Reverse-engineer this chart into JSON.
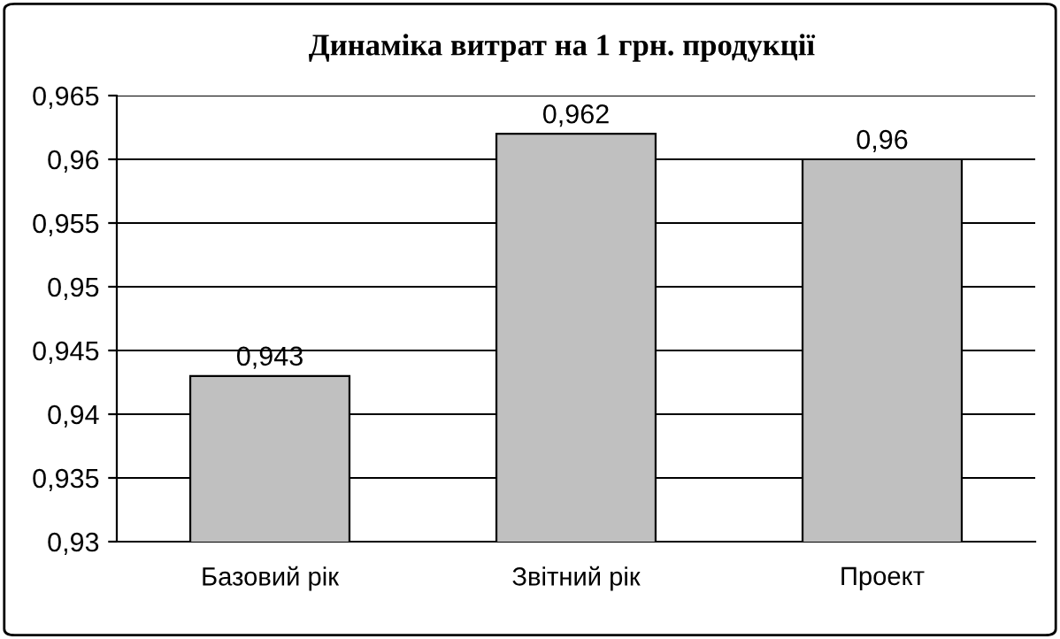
{
  "chart_data": {
    "type": "bar",
    "title": "Динаміка витрат на 1 грн. продукції",
    "categories": [
      "Базовий рік",
      "Звітний рік",
      "Проект"
    ],
    "values": [
      0.943,
      0.962,
      0.96
    ],
    "color": "#c0c0c0",
    "value_labels": [
      "0,943",
      "0,962",
      "0,96"
    ],
    "ylim": [
      0.93,
      0.965
    ],
    "yticks": [
      {
        "value": 0.93,
        "label": "0,93"
      },
      {
        "value": 0.935,
        "label": "0,935"
      },
      {
        "value": 0.94,
        "label": "0,94"
      },
      {
        "value": 0.945,
        "label": "0,945"
      },
      {
        "value": 0.95,
        "label": "0,95"
      },
      {
        "value": 0.955,
        "label": "0,955"
      },
      {
        "value": 0.96,
        "label": "0,96"
      },
      {
        "value": 0.965,
        "label": "0,965"
      }
    ],
    "grid": "y",
    "legend": false
  }
}
